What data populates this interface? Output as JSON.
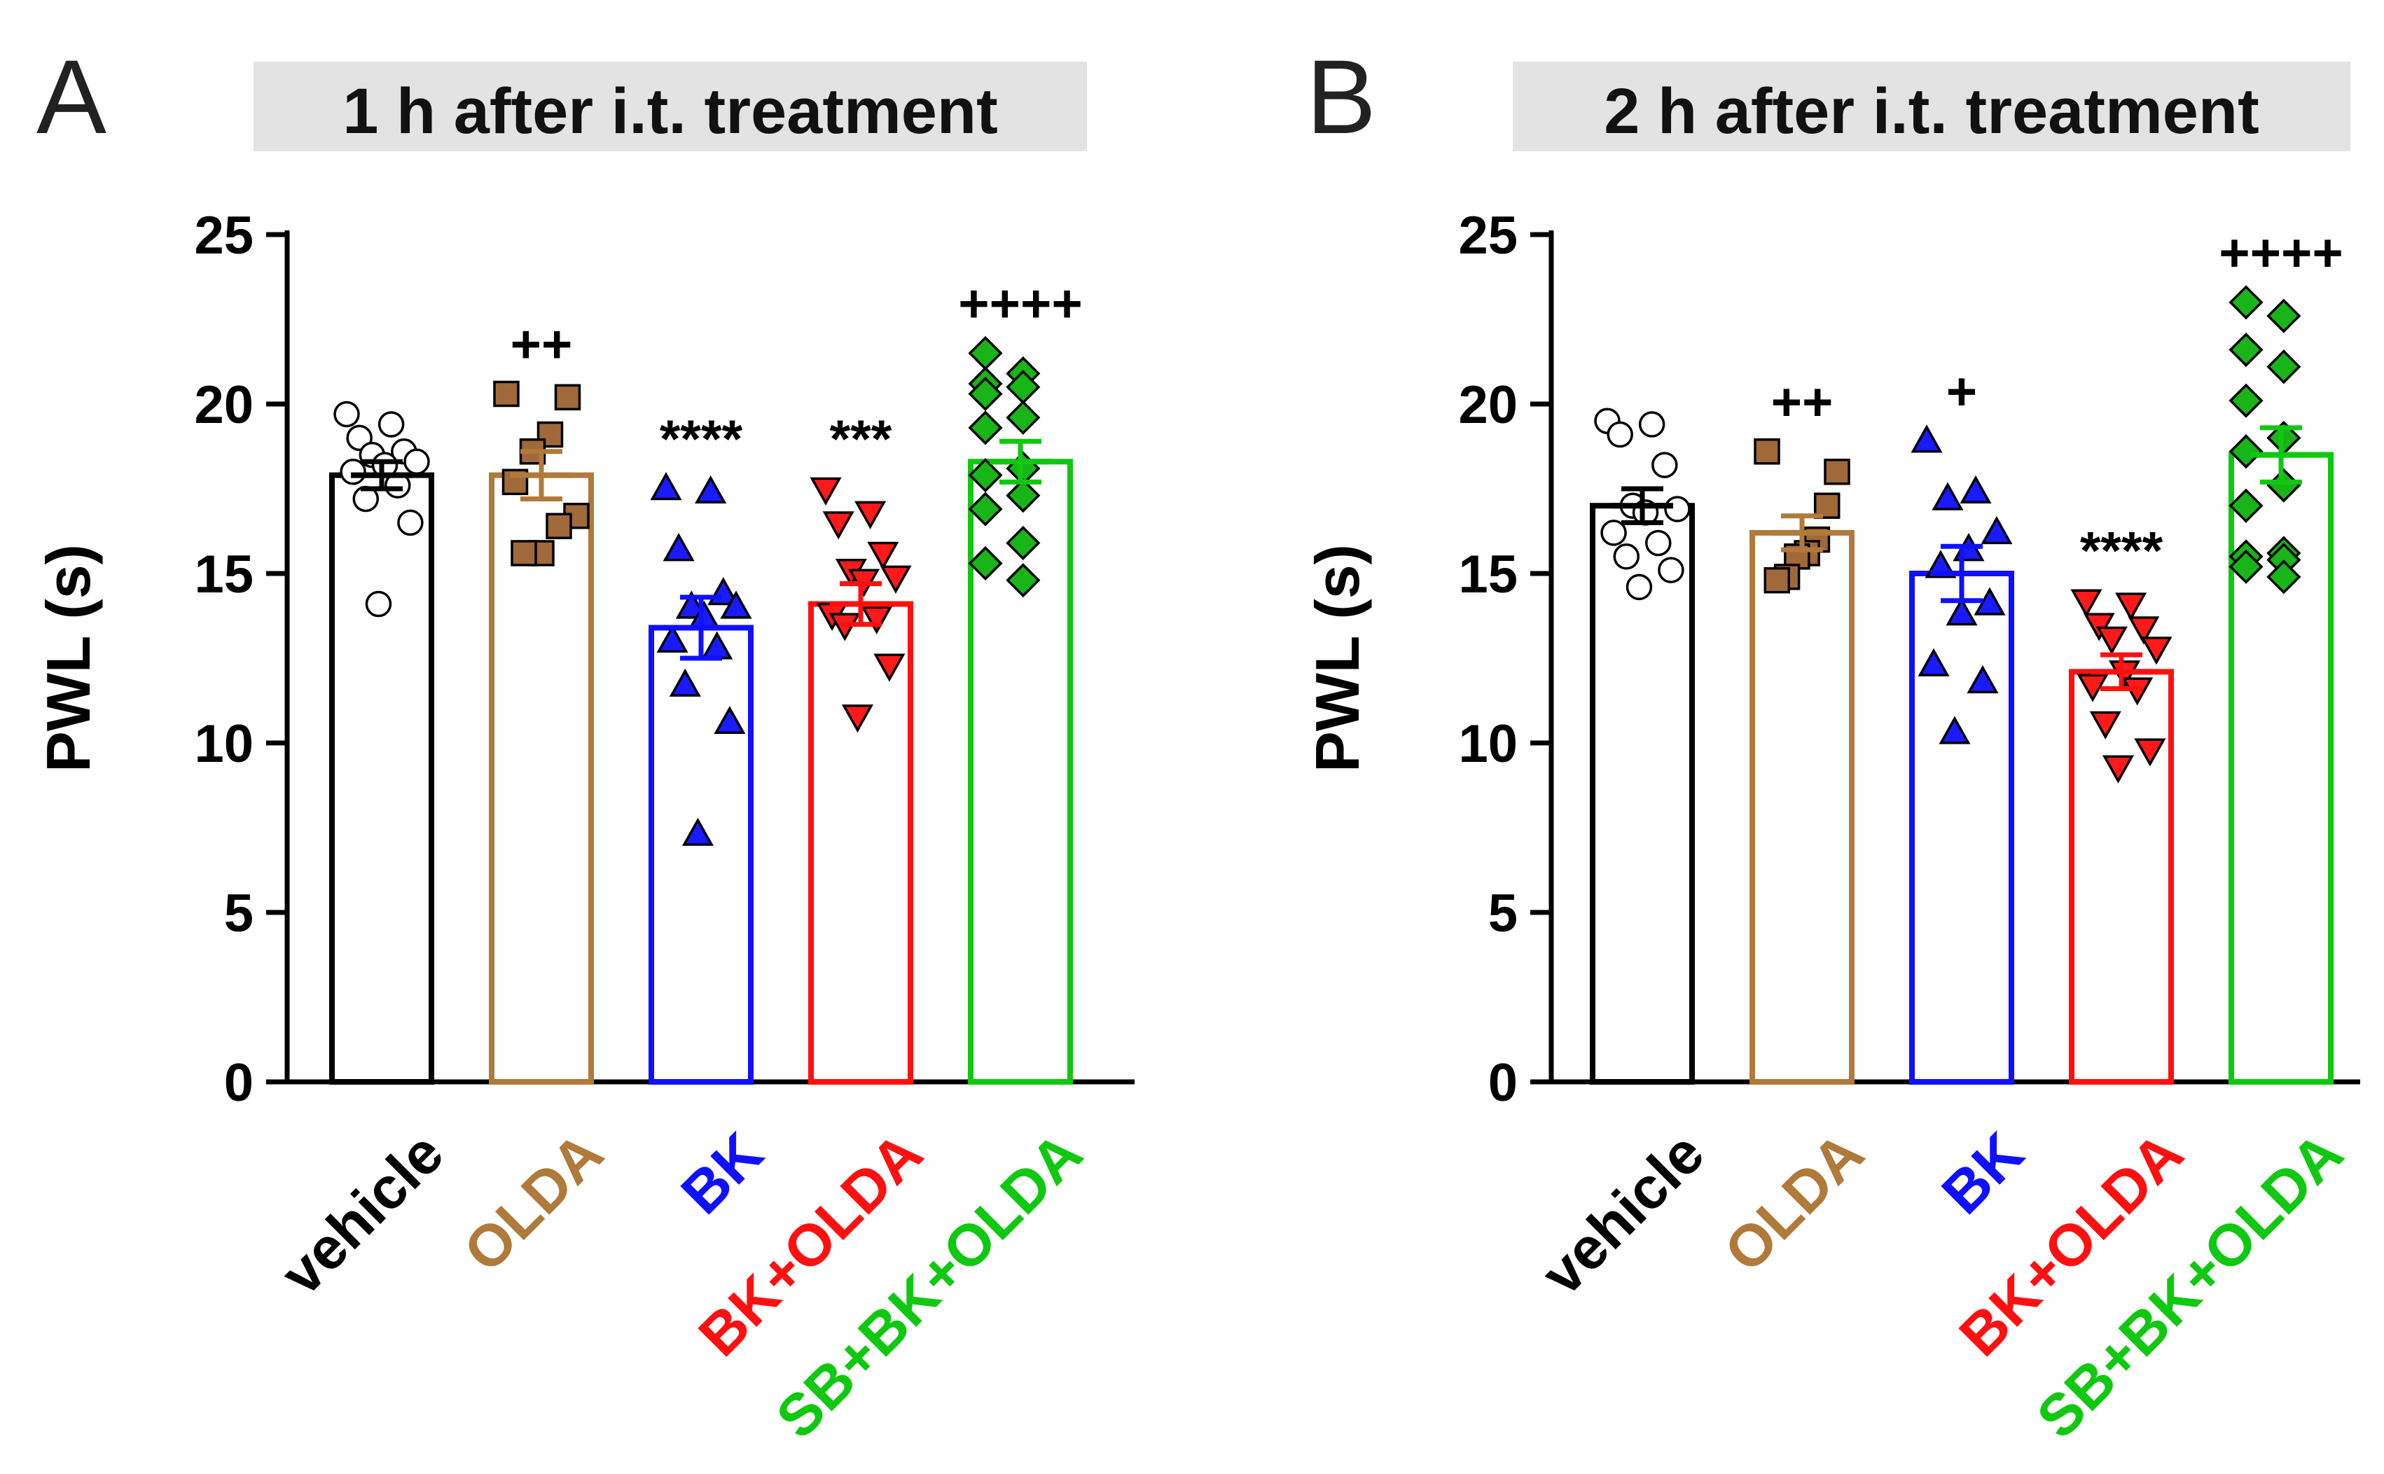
{
  "chart_data": [
    {
      "type": "bar",
      "panel": "A",
      "title": "1 h after i.t. treatment",
      "xlabel": "",
      "ylabel": "PWL (s)",
      "ylim": [
        0,
        25
      ],
      "yticks": [
        0,
        5,
        10,
        15,
        20,
        25
      ],
      "categories": [
        "vehicle",
        "OLDA",
        "BK",
        "BK+OLDA",
        "SB+BK+OLDA"
      ],
      "colors": [
        "#000000",
        "#b07a3a",
        "#1010ff",
        "#ff1010",
        "#10c810"
      ],
      "marker_fill": [
        "#ffffff",
        "#a0693a",
        "#1a1aff",
        "#ff1a1a",
        "#18b418"
      ],
      "markers": [
        "circle",
        "square",
        "triangle-up",
        "triangle-down",
        "diamond"
      ],
      "values": [
        17.9,
        17.9,
        13.4,
        14.1,
        18.3
      ],
      "sem": [
        0.4,
        0.7,
        0.9,
        0.6,
        0.6
      ],
      "significance": [
        "",
        "++",
        "****",
        "***",
        "++++"
      ],
      "points": [
        [
          19.7,
          19.4,
          19.0,
          18.6,
          18.5,
          18.3,
          18.2,
          18.0,
          17.6,
          17.2,
          16.5,
          14.1
        ],
        [
          20.3,
          20.2,
          19.1,
          18.6,
          17.7,
          16.7,
          16.4,
          15.6,
          15.6
        ],
        [
          17.5,
          17.4,
          15.7,
          14.4,
          14.0,
          14.0,
          13.7,
          13.0,
          12.8,
          11.7,
          10.6,
          7.3
        ],
        [
          17.5,
          16.8,
          16.5,
          15.6,
          15.1,
          14.9,
          14.8,
          13.8,
          13.7,
          13.5,
          12.3,
          10.8
        ],
        [
          21.5,
          20.9,
          20.6,
          20.5,
          20.3,
          19.6,
          19.3,
          18.1,
          17.9,
          17.3,
          16.9,
          15.9,
          15.3,
          14.8
        ]
      ]
    },
    {
      "type": "bar",
      "panel": "B",
      "title": "2 h after i.t. treatment",
      "xlabel": "",
      "ylabel": "PWL (s)",
      "ylim": [
        0,
        25
      ],
      "yticks": [
        0,
        5,
        10,
        15,
        20,
        25
      ],
      "categories": [
        "vehicle",
        "OLDA",
        "BK",
        "BK+OLDA",
        "SB+BK+OLDA"
      ],
      "colors": [
        "#000000",
        "#b07a3a",
        "#1010ff",
        "#ff1010",
        "#10c810"
      ],
      "marker_fill": [
        "#ffffff",
        "#a0693a",
        "#1a1aff",
        "#ff1a1a",
        "#18b418"
      ],
      "markers": [
        "circle",
        "square",
        "triangle-up",
        "triangle-down",
        "diamond"
      ],
      "values": [
        17.0,
        16.2,
        15.0,
        12.1,
        18.5
      ],
      "sem": [
        0.5,
        0.5,
        0.8,
        0.5,
        0.8
      ],
      "significance": [
        "",
        "++",
        "+",
        "****",
        "++++"
      ],
      "points": [
        [
          19.5,
          19.4,
          19.1,
          18.2,
          17.0,
          16.9,
          16.8,
          16.2,
          15.9,
          15.5,
          15.1,
          14.6
        ],
        [
          18.6,
          18.0,
          17.0,
          16.0,
          15.6,
          15.5,
          14.9,
          14.8
        ],
        [
          18.9,
          17.4,
          17.2,
          16.2,
          15.7,
          15.2,
          14.1,
          13.8,
          12.3,
          11.8,
          10.3
        ],
        [
          14.2,
          14.1,
          13.5,
          13.4,
          13.1,
          12.8,
          12.1,
          11.7,
          11.6,
          10.6,
          9.8,
          9.3
        ],
        [
          23.0,
          22.6,
          21.6,
          21.1,
          20.1,
          19.0,
          18.6,
          17.6,
          17.0,
          15.6,
          15.5,
          15.4,
          15.2,
          14.9
        ]
      ]
    }
  ]
}
